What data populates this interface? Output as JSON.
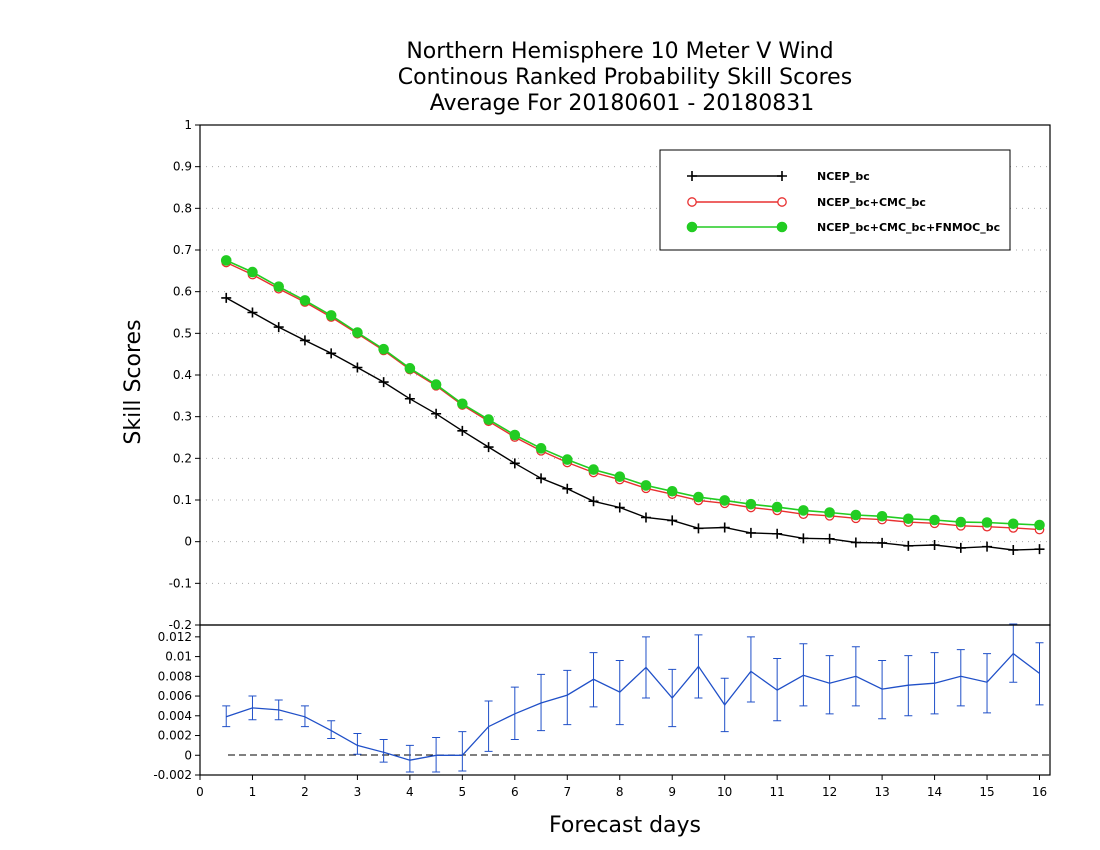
{
  "chart_data": [
    {
      "type": "line",
      "title": [
        "Northern Hemisphere 10 Meter V Wind",
        "Continous Ranked Probability Skill Scores",
        "Average For 20180601 - 20180831"
      ],
      "ylabel": "Skill Scores",
      "xlim": [
        0,
        16.2
      ],
      "ylim": [
        -0.2,
        1
      ],
      "yticks": [
        "-0.2",
        "-0.1",
        "0",
        "0.1",
        "0.2",
        "0.3",
        "0.4",
        "0.5",
        "0.6",
        "0.7",
        "0.8",
        "0.9",
        "1"
      ],
      "grid": true,
      "legend_position": "top-right",
      "x": [
        0.5,
        1,
        1.5,
        2,
        2.5,
        3,
        3.5,
        4,
        4.5,
        5,
        5.5,
        6,
        6.5,
        7,
        7.5,
        8,
        8.5,
        9,
        9.5,
        10,
        10.5,
        11,
        11.5,
        12,
        12.5,
        13,
        13.5,
        14,
        14.5,
        15,
        15.5,
        16
      ],
      "series": [
        {
          "name": "NCEP_bc",
          "color": "#000000",
          "marker": "plus",
          "values": [
            0.585,
            0.55,
            0.515,
            0.483,
            0.452,
            0.418,
            0.383,
            0.343,
            0.307,
            0.266,
            0.227,
            0.188,
            0.152,
            0.127,
            0.097,
            0.082,
            0.058,
            0.051,
            0.032,
            0.034,
            0.021,
            0.019,
            0.008,
            0.007,
            -0.002,
            -0.003,
            -0.01,
            -0.008,
            -0.015,
            -0.012,
            -0.02,
            -0.018
          ]
        },
        {
          "name": "NCEP_bc+CMC_bc",
          "color": "#e83030",
          "marker": "open-circle",
          "values": [
            0.67,
            0.641,
            0.607,
            0.575,
            0.539,
            0.499,
            0.459,
            0.413,
            0.374,
            0.328,
            0.289,
            0.251,
            0.218,
            0.19,
            0.166,
            0.149,
            0.128,
            0.114,
            0.099,
            0.092,
            0.082,
            0.075,
            0.066,
            0.062,
            0.056,
            0.053,
            0.047,
            0.044,
            0.038,
            0.036,
            0.033,
            0.029
          ]
        },
        {
          "name": "NCEP_bc+CMC_bc+FNMOC_bc",
          "color": "#22cc22",
          "marker": "filled-circle",
          "values": [
            0.675,
            0.647,
            0.612,
            0.579,
            0.543,
            0.502,
            0.462,
            0.416,
            0.377,
            0.331,
            0.293,
            0.256,
            0.224,
            0.197,
            0.173,
            0.156,
            0.135,
            0.121,
            0.107,
            0.099,
            0.09,
            0.083,
            0.075,
            0.07,
            0.064,
            0.061,
            0.055,
            0.052,
            0.047,
            0.046,
            0.043,
            0.04
          ]
        }
      ]
    },
    {
      "type": "line",
      "xlabel": "Forecast days",
      "xlim": [
        0,
        16.2
      ],
      "xticks": [
        "0",
        "1",
        "2",
        "3",
        "4",
        "5",
        "6",
        "7",
        "8",
        "9",
        "10",
        "11",
        "12",
        "13",
        "14",
        "15",
        "16"
      ],
      "ylim": [
        -0.002,
        0.0132
      ],
      "yticks": [
        "-0.002",
        "0",
        "0.002",
        "0.004",
        "0.006",
        "0.008",
        "0.01",
        "0.012"
      ],
      "zero_line": true,
      "x": [
        0.5,
        1,
        1.5,
        2,
        2.5,
        3,
        3.5,
        4,
        4.5,
        5,
        5.5,
        6,
        6.5,
        7,
        7.5,
        8,
        8.5,
        9,
        9.5,
        10,
        10.5,
        11,
        11.5,
        12,
        12.5,
        13,
        13.5,
        14,
        14.5,
        15,
        15.5,
        16
      ],
      "series": [
        {
          "color": "#2050c8",
          "values": [
            0.0039,
            0.0048,
            0.0046,
            0.0039,
            0.0025,
            0.001,
            0.0003,
            -0.0005,
            0.0,
            0.0,
            0.0029,
            0.0042,
            0.0053,
            0.0061,
            0.0077,
            0.0064,
            0.0089,
            0.0058,
            0.009,
            0.0051,
            0.0085,
            0.0066,
            0.0081,
            0.0073,
            0.008,
            0.0067,
            0.0071,
            0.0073,
            0.008,
            0.0074,
            0.0103,
            0.0083
          ],
          "error_low": [
            0.0029,
            0.0036,
            0.0036,
            0.0029,
            0.0017,
            0.0001,
            -0.0007,
            -0.0017,
            -0.0017,
            -0.0016,
            0.0004,
            0.0016,
            0.0025,
            0.0031,
            0.0049,
            0.0031,
            0.0058,
            0.0029,
            0.0058,
            0.0024,
            0.0054,
            0.0035,
            0.005,
            0.0042,
            0.005,
            0.0037,
            0.004,
            0.0042,
            0.005,
            0.0043,
            0.0074,
            0.0051
          ],
          "error_high": [
            0.005,
            0.006,
            0.0056,
            0.005,
            0.0035,
            0.0022,
            0.0016,
            0.001,
            0.0018,
            0.0024,
            0.0055,
            0.0069,
            0.0082,
            0.0086,
            0.0104,
            0.0096,
            0.012,
            0.0087,
            0.0122,
            0.0078,
            0.012,
            0.0098,
            0.0113,
            0.0101,
            0.011,
            0.0096,
            0.0101,
            0.0104,
            0.0107,
            0.0103,
            0.0133,
            0.0114
          ]
        }
      ]
    }
  ]
}
